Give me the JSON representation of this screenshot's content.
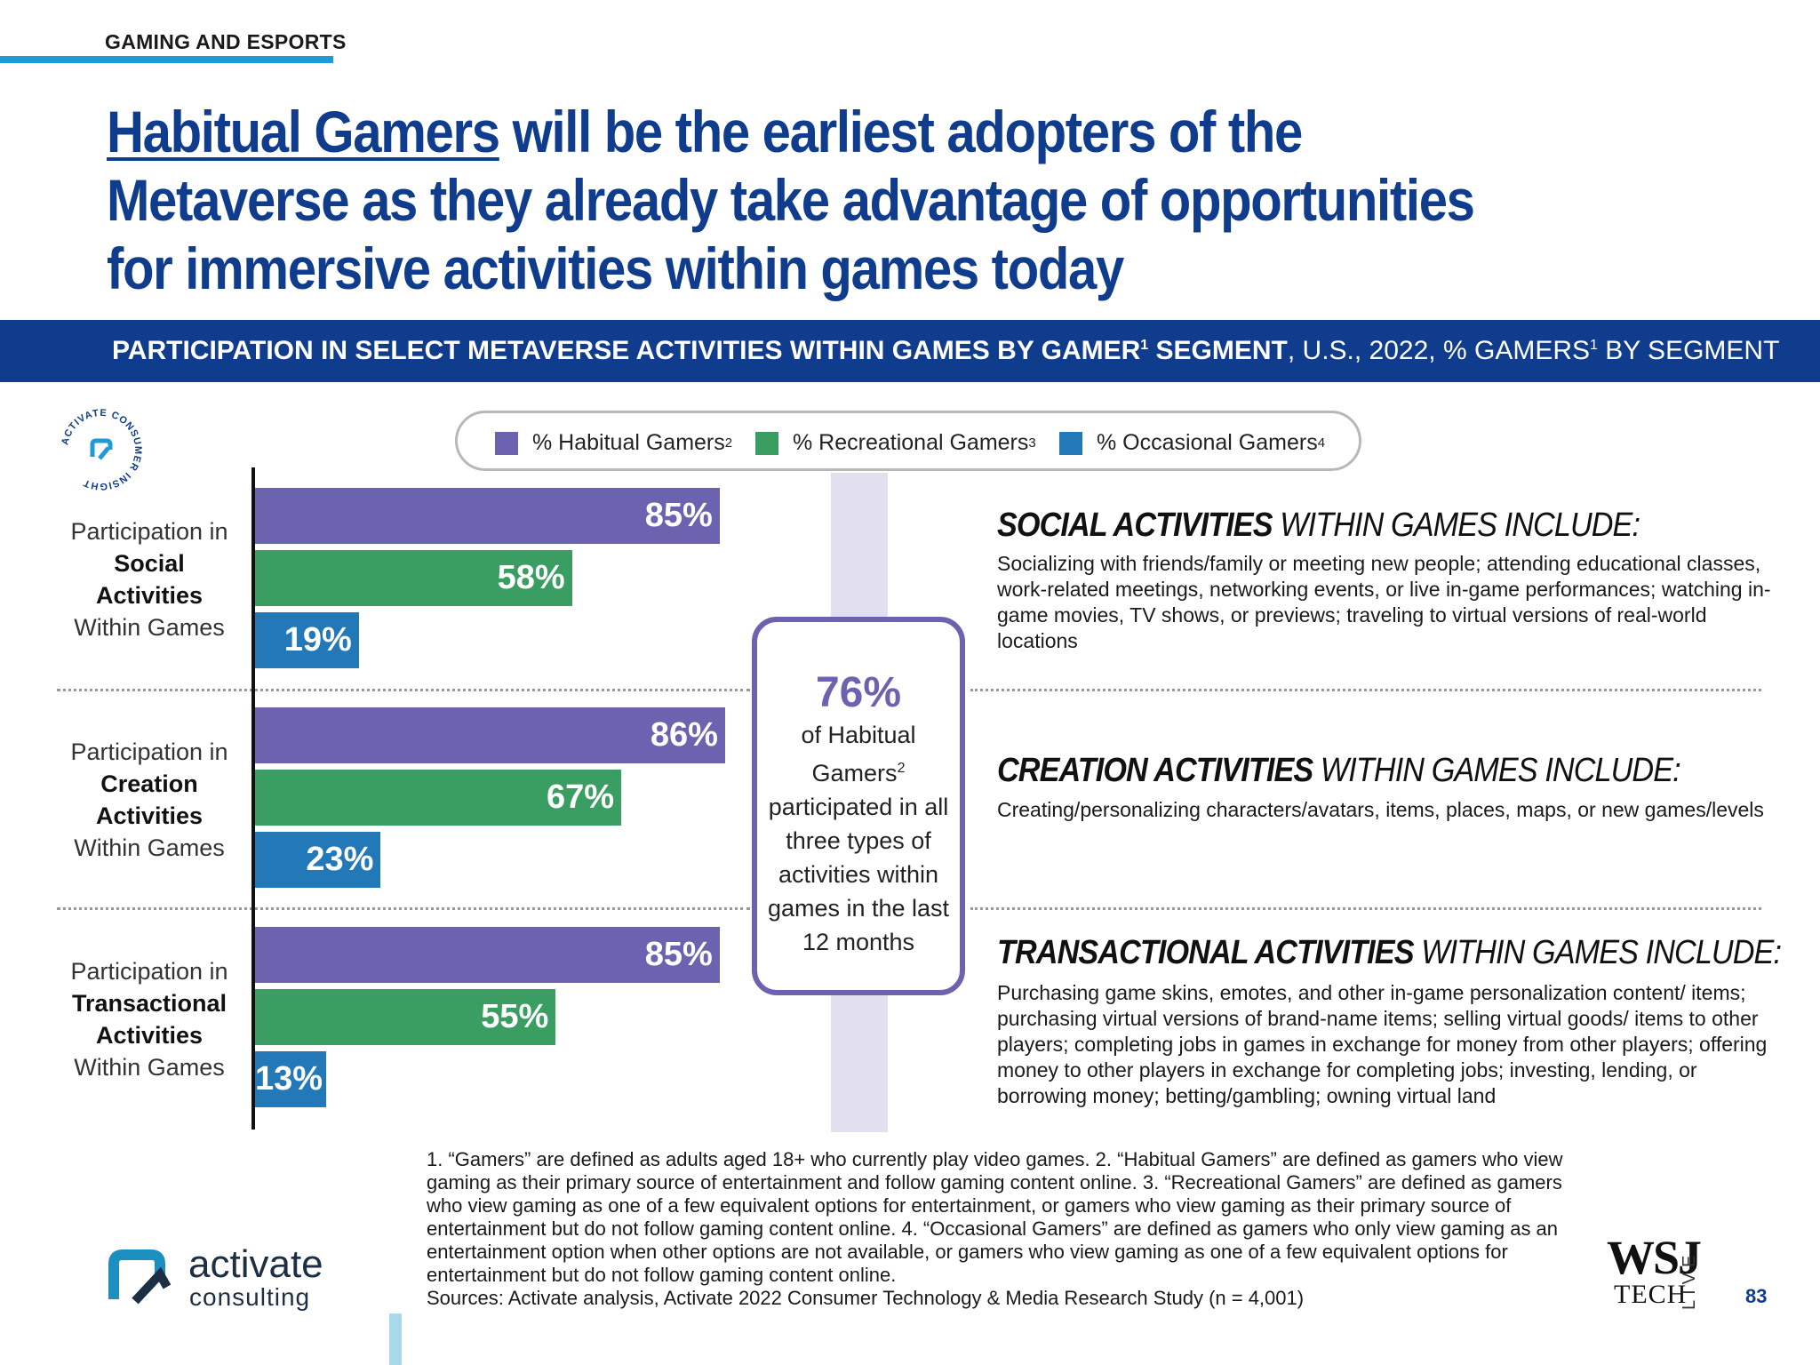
{
  "header": {
    "section_tag": "GAMING AND ESPORTS",
    "headline_highlight": "Habitual Gamers",
    "headline_rest": " will be the earliest adopters of the Metaverse as they already take advantage of opportunities for immersive activities within games today"
  },
  "banner": {
    "bold_before": "PARTICIPATION IN SELECT METAVERSE ACTIVITIES WITHIN GAMES BY GAMER",
    "sup1": "1",
    "bold_after": " SEGMENT",
    "normal_before": ", U.S., 2022, % GAMERS",
    "sup2": "1",
    "normal_after": " BY SEGMENT"
  },
  "badge": {
    "text": "ACTIVATE CONSUMER INSIGHT"
  },
  "legend": [
    {
      "label": "% Habitual Gamers",
      "sup": "2",
      "color": "#6c63b0"
    },
    {
      "label": "% Recreational Gamers",
      "sup": "3",
      "color": "#3a9e63"
    },
    {
      "label": "% Occasional Gamers",
      "sup": "4",
      "color": "#2378b8"
    }
  ],
  "chart_data": {
    "type": "bar",
    "orientation": "horizontal",
    "categories": [
      {
        "pre": "Participation in",
        "bold1": "Social",
        "bold2": "Activities",
        "post": "Within Games"
      },
      {
        "pre": "Participation in",
        "bold1": "Creation",
        "bold2": "Activities",
        "post": "Within Games"
      },
      {
        "pre": "Participation in",
        "bold1": "Transactional",
        "bold2": "Activities",
        "post": "Within Games"
      }
    ],
    "series": [
      {
        "name": "% Habitual Gamers",
        "color": "#6c63b0",
        "values": [
          85,
          86,
          85
        ],
        "labels": [
          "85%",
          "86%",
          "85%"
        ]
      },
      {
        "name": "% Recreational Gamers",
        "color": "#3a9e63",
        "values": [
          58,
          67,
          55
        ],
        "labels": [
          "58%",
          "67%",
          "55%"
        ]
      },
      {
        "name": "% Occasional Gamers",
        "color": "#2378b8",
        "values": [
          19,
          23,
          13
        ],
        "labels": [
          "19%",
          "23%",
          "13%"
        ]
      }
    ],
    "xlim": [
      0,
      100
    ],
    "grid": false
  },
  "callout": {
    "pct": "76%",
    "line1": "of Habitual",
    "line2": "Gamers",
    "sup": "2",
    "line3": "participated in all three types of activities within games in the last 12 months"
  },
  "activities": [
    {
      "title_bold": "SOCIAL ACTIVITIES",
      "title_rest": " WITHIN GAMES INCLUDE:",
      "body": "Socializing with friends/family or meeting new people; attending educational classes, work-related meetings, networking events, or live in-game performances; watching in-game movies, TV shows, or previews; traveling to virtual versions of real-world locations"
    },
    {
      "title_bold": "CREATION ACTIVITIES",
      "title_rest": " WITHIN GAMES INCLUDE:",
      "body": "Creating/personalizing characters/avatars, items, places, maps, or new games/levels"
    },
    {
      "title_bold": "TRANSACTIONAL ACTIVITIES",
      "title_rest": " WITHIN GAMES INCLUDE:",
      "body": "Purchasing game skins, emotes, and other in-game personalization content/ items; purchasing virtual versions of brand-name items; selling virtual goods/ items to other players; completing jobs in games in exchange for money from other players; offering money to other players in exchange for completing jobs; investing, lending, or borrowing money; betting/gambling; owning virtual land"
    }
  ],
  "footnote": {
    "text": "1. “Gamers” are defined as adults aged 18+ who currently play video games.  2. “Habitual Gamers” are defined as gamers who view gaming as their primary source of entertainment and follow gaming content online.  3. “Recreational Gamers” are defined as gamers who view gaming as one of a few equivalent options for entertainment, or gamers who view gaming as their primary source of entertainment but do not follow gaming content online.  4. “Occasional Gamers” are defined as gamers who only view gaming as an entertainment option when other options are not available, or gamers who view gaming as one of a few equivalent options for entertainment but do not follow gaming content online.",
    "sources": "Sources: Activate analysis, Activate 2022 Consumer Technology & Media Research Study (n = 4,001)"
  },
  "logo": {
    "word1": "activate",
    "word2": "consulting"
  },
  "partner": {
    "wsj": "WSJ",
    "tech": "TECH",
    "live": "LIVE"
  },
  "page_number": "83"
}
